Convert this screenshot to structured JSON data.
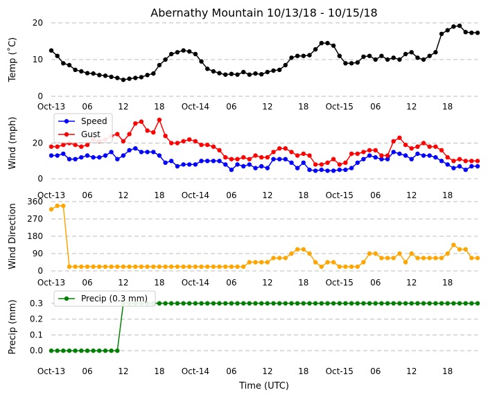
{
  "title": "Abernathy Mountain 10/13/18 - 10/15/18",
  "xlabel": "Time (UTC)",
  "x_ticks": [
    {
      "label": "Oct-13",
      "hour": 0
    },
    {
      "label": "06",
      "hour": 6
    },
    {
      "label": "12",
      "hour": 12
    },
    {
      "label": "18",
      "hour": 18
    },
    {
      "label": "Oct-14",
      "hour": 24
    },
    {
      "label": "06",
      "hour": 30
    },
    {
      "label": "12",
      "hour": 36
    },
    {
      "label": "18",
      "hour": 42
    },
    {
      "label": "Oct-15",
      "hour": 48
    },
    {
      "label": "06",
      "hour": 54
    },
    {
      "label": "12",
      "hour": 60
    },
    {
      "label": "18",
      "hour": 66
    }
  ],
  "colors": {
    "temp": "#000000",
    "speed": "#0000ff",
    "gust": "#ff0000",
    "direction": "#ffa500",
    "precip": "#008000",
    "grid": "#bbbbbb"
  },
  "chart_data": [
    {
      "type": "line",
      "id": "temp",
      "ylabel": "Temp (˚C)",
      "x_hours_start": 0,
      "x_hours_step": 1,
      "x_hours_end": 71,
      "ylim": [
        0,
        20
      ],
      "yticks": [
        0,
        10,
        20
      ],
      "series": [
        {
          "name": "Temp",
          "color": "#000000",
          "values": [
            12.5,
            11,
            9,
            8.5,
            7.2,
            6.8,
            6.3,
            6.2,
            5.8,
            5.6,
            5.3,
            5.0,
            4.5,
            4.8,
            5.0,
            5.2,
            5.8,
            6.2,
            8.5,
            10,
            11.5,
            12,
            12.5,
            12.2,
            11.5,
            9.5,
            7.5,
            6.8,
            6.3,
            5.9,
            6.1,
            5.9,
            6.6,
            5.9,
            6.2,
            6.0,
            6.6,
            7.0,
            7.2,
            8.5,
            10.5,
            11.0,
            11.0,
            11.2,
            12.8,
            14.5,
            14.5,
            13.8,
            11.0,
            9.0,
            9.0,
            9.2,
            10.8,
            11.0,
            10.0,
            11.0,
            10.0,
            10.5,
            10.0,
            11.5,
            12.0,
            10.5,
            10.0,
            11.0,
            12.0,
            17.0,
            18.0,
            19.0,
            19.2,
            17.5,
            17.3,
            17.3
          ]
        }
      ]
    },
    {
      "type": "line",
      "id": "wind",
      "ylabel": "Wind (mph)",
      "x_hours_start": 0,
      "x_hours_step": 1,
      "x_hours_end": 71,
      "ylim": [
        0,
        40
      ],
      "yticks": [
        0,
        20
      ],
      "legend": "upper-left",
      "series": [
        {
          "name": "Speed",
          "color": "#0000ff",
          "values": [
            13,
            13,
            14,
            11,
            11,
            12,
            13,
            12,
            12,
            13,
            15,
            11,
            13,
            16,
            17,
            15,
            15,
            15,
            13,
            9,
            10,
            7,
            8,
            8,
            8,
            10,
            10,
            10,
            10,
            8,
            5,
            8,
            7,
            8,
            6,
            7,
            6,
            11,
            11,
            11,
            9,
            6,
            9,
            5,
            4.5,
            5,
            4.5,
            4.5,
            5,
            5,
            6,
            9,
            11,
            13,
            12,
            11,
            11,
            15,
            14,
            13,
            11,
            14,
            13,
            13,
            12,
            10,
            8,
            6,
            7,
            5,
            7,
            7
          ]
        },
        {
          "name": "Gust",
          "color": "#ff0000",
          "values": [
            18,
            18,
            19,
            20,
            19,
            18,
            19,
            22,
            21,
            22,
            24,
            25,
            21,
            25,
            31,
            32,
            27,
            26,
            33,
            24,
            20,
            20,
            21,
            22,
            21,
            19,
            19,
            18,
            16,
            12,
            11,
            11,
            12,
            11,
            13,
            12,
            12,
            15,
            17,
            17,
            15,
            13,
            14,
            13,
            8,
            8,
            9,
            11,
            8,
            9,
            14,
            14,
            15,
            16,
            16,
            13,
            13,
            21,
            23,
            19,
            17,
            18,
            20,
            18,
            18,
            16,
            12,
            10,
            11,
            10,
            10,
            10
          ]
        }
      ]
    },
    {
      "type": "line",
      "id": "direction",
      "ylabel": "Wind Direction",
      "x_hours_start": 0,
      "x_hours_step": 1,
      "x_hours_end": 71,
      "ylim": [
        0,
        360
      ],
      "yticks": [
        0,
        90,
        180,
        270,
        360
      ],
      "series": [
        {
          "name": "Direction",
          "color": "#ffa500",
          "values": [
            320,
            338,
            338,
            22,
            22,
            22,
            22,
            22,
            22,
            22,
            22,
            22,
            22,
            22,
            22,
            22,
            22,
            22,
            22,
            22,
            22,
            22,
            22,
            22,
            22,
            22,
            22,
            22,
            22,
            22,
            22,
            22,
            22,
            45,
            45,
            45,
            45,
            67,
            67,
            67,
            90,
            112,
            112,
            90,
            45,
            22,
            45,
            45,
            22,
            22,
            22,
            22,
            45,
            90,
            90,
            67,
            67,
            67,
            90,
            45,
            90,
            67,
            67,
            67,
            67,
            67,
            90,
            135,
            112,
            112,
            67,
            67
          ]
        }
      ]
    },
    {
      "type": "line",
      "id": "precip",
      "ylabel": "Precip (mm)",
      "x_hours_start": 0,
      "x_hours_step": 1,
      "x_hours_end": 71,
      "ylim": [
        -0.03,
        0.33
      ],
      "yticks": [
        0.0,
        0.1,
        0.2,
        0.3
      ],
      "legend": "upper-left",
      "series": [
        {
          "name": "Precip (0.3 mm)",
          "color": "#008000",
          "values": [
            0,
            0,
            0,
            0,
            0,
            0,
            0,
            0,
            0,
            0,
            0,
            0,
            0.3,
            0.3,
            0.3,
            0.3,
            0.3,
            0.3,
            0.3,
            0.3,
            0.3,
            0.3,
            0.3,
            0.3,
            0.3,
            0.3,
            0.3,
            0.3,
            0.3,
            0.3,
            0.3,
            0.3,
            0.3,
            0.3,
            0.3,
            0.3,
            0.3,
            0.3,
            0.3,
            0.3,
            0.3,
            0.3,
            0.3,
            0.3,
            0.3,
            0.3,
            0.3,
            0.3,
            0.3,
            0.3,
            0.3,
            0.3,
            0.3,
            0.3,
            0.3,
            0.3,
            0.3,
            0.3,
            0.3,
            0.3,
            0.3,
            0.3,
            0.3,
            0.3,
            0.3,
            0.3,
            0.3,
            0.3,
            0.3,
            0.3,
            0.3,
            0.3
          ]
        }
      ]
    }
  ]
}
